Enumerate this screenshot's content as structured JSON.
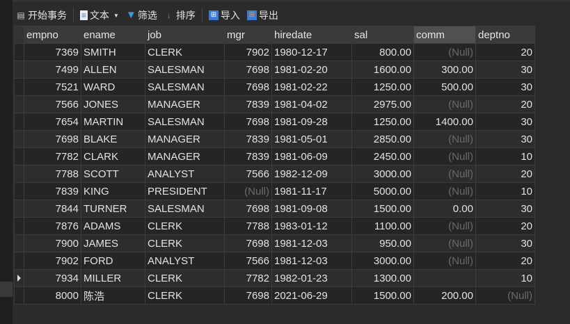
{
  "toolbar": {
    "begin_transaction": "开始事务",
    "text": "文本",
    "filter": "筛选",
    "sort": "排序",
    "import": "导入",
    "export": "导出"
  },
  "columns": [
    "empno",
    "ename",
    "job",
    "mgr",
    "hiredate",
    "sal",
    "comm",
    "deptno"
  ],
  "selected_column": "comm",
  "null_label": "(Null)",
  "rows": [
    [
      "7369",
      "SMITH",
      "CLERK",
      "7902",
      "1980-12-17",
      "800.00",
      null,
      "20"
    ],
    [
      "7499",
      "ALLEN",
      "SALESMAN",
      "7698",
      "1981-02-20",
      "1600.00",
      "300.00",
      "30"
    ],
    [
      "7521",
      "WARD",
      "SALESMAN",
      "7698",
      "1981-02-22",
      "1250.00",
      "500.00",
      "30"
    ],
    [
      "7566",
      "JONES",
      "MANAGER",
      "7839",
      "1981-04-02",
      "2975.00",
      null,
      "20"
    ],
    [
      "7654",
      "MARTIN",
      "SALESMAN",
      "7698",
      "1981-09-28",
      "1250.00",
      "1400.00",
      "30"
    ],
    [
      "7698",
      "BLAKE",
      "MANAGER",
      "7839",
      "1981-05-01",
      "2850.00",
      null,
      "30"
    ],
    [
      "7782",
      "CLARK",
      "MANAGER",
      "7839",
      "1981-06-09",
      "2450.00",
      null,
      "10"
    ],
    [
      "7788",
      "SCOTT",
      "ANALYST",
      "7566",
      "1982-12-09",
      "3000.00",
      null,
      "20"
    ],
    [
      "7839",
      "KING",
      "PRESIDENT",
      null,
      "1981-11-17",
      "5000.00",
      null,
      "10"
    ],
    [
      "7844",
      "TURNER",
      "SALESMAN",
      "7698",
      "1981-09-08",
      "1500.00",
      "0.00",
      "30"
    ],
    [
      "7876",
      "ADAMS",
      "CLERK",
      "7788",
      "1983-01-12",
      "1100.00",
      null,
      "20"
    ],
    [
      "7900",
      "JAMES",
      "CLERK",
      "7698",
      "1981-12-03",
      "950.00",
      null,
      "30"
    ],
    [
      "7902",
      "FORD",
      "ANALYST",
      "7566",
      "1981-12-03",
      "3000.00",
      null,
      "20"
    ],
    [
      "7934",
      "MILLER",
      "CLERK",
      "7782",
      "1982-01-23",
      "1300.00",
      "",
      "10"
    ],
    [
      "8000",
      "陈浩",
      "CLERK",
      "7698",
      "2021-06-29",
      "1500.00",
      "200.00",
      null
    ]
  ],
  "current_row": 13
}
